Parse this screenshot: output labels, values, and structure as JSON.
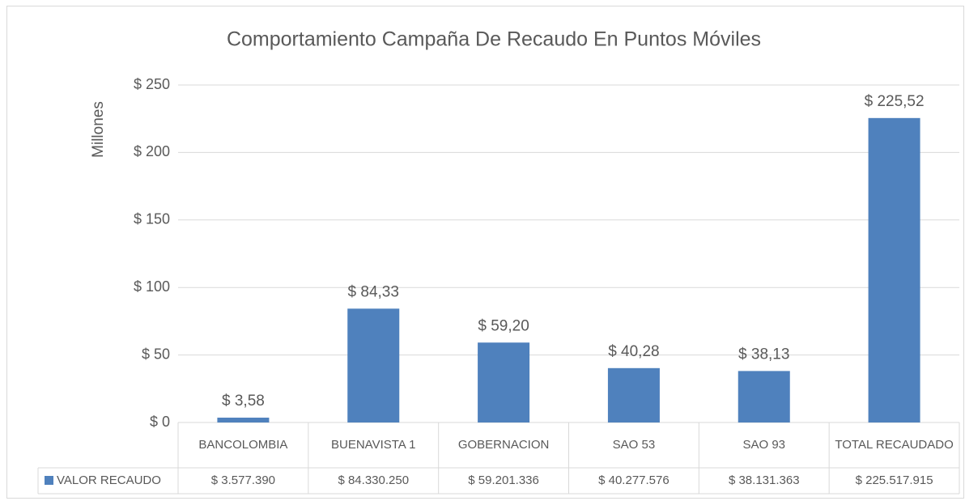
{
  "chart_data": {
    "type": "bar",
    "title": "Comportamiento Campaña De Recaudo En Puntos Móviles",
    "y_label": "Millones",
    "categories": [
      "BANCOLOMBIA",
      "BUENAVISTA 1",
      "GOBERNACION",
      "SAO 53",
      "SAO 93",
      "TOTAL RECAUDADO"
    ],
    "series": [
      {
        "name": "VALOR RECAUDO",
        "color": "#4f81bd",
        "values": [
          3.57739,
          84.33025,
          59.201336,
          40.277576,
          38.131363,
          225.517915
        ],
        "value_labels": [
          "$ 3,58",
          "$ 84,33",
          "$ 59,20",
          "$ 40,28",
          "$ 38,13",
          "$ 225,52"
        ],
        "table_labels": [
          "$ 3.577.390",
          "$ 84.330.250",
          "$ 59.201.336",
          "$ 40.277.576",
          "$ 38.131.363",
          "$ 225.517.915"
        ]
      }
    ],
    "ylim": [
      0,
      250
    ],
    "yticks": [
      {
        "value": 0,
        "label": "$ 0"
      },
      {
        "value": 50,
        "label": "$ 50"
      },
      {
        "value": 100,
        "label": "$ 100"
      },
      {
        "value": 150,
        "label": "$ 150"
      },
      {
        "value": 200,
        "label": "$ 200"
      },
      {
        "value": 250,
        "label": "$ 250"
      }
    ],
    "grid": true
  }
}
